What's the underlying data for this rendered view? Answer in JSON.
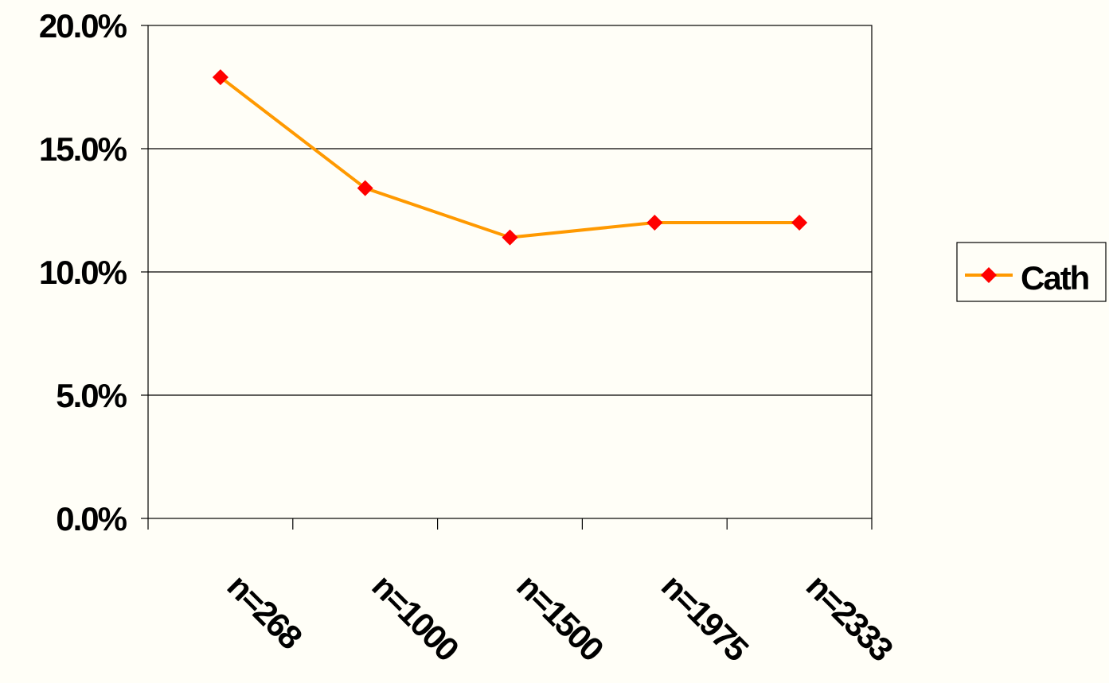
{
  "chart_data": {
    "type": "line",
    "title": "",
    "xlabel": "",
    "ylabel": "",
    "categories": [
      "n=268",
      "n=1000",
      "n=1500",
      "n=1975",
      "n=2333"
    ],
    "series": [
      {
        "name": "Cath",
        "values": [
          17.9,
          13.4,
          11.4,
          12.0,
          12.0
        ],
        "line_color": "#ff9900",
        "marker_color": "#ff0000",
        "marker": "diamond"
      }
    ],
    "ylim": [
      0,
      20
    ],
    "yticks": [
      0,
      5,
      10,
      15,
      20
    ],
    "ytick_labels": [
      "0.0%",
      "5.0%",
      "10.0%",
      "15.0%",
      "20.0%"
    ],
    "grid": true,
    "legend_position": "right",
    "background_color": "#fffef7"
  }
}
